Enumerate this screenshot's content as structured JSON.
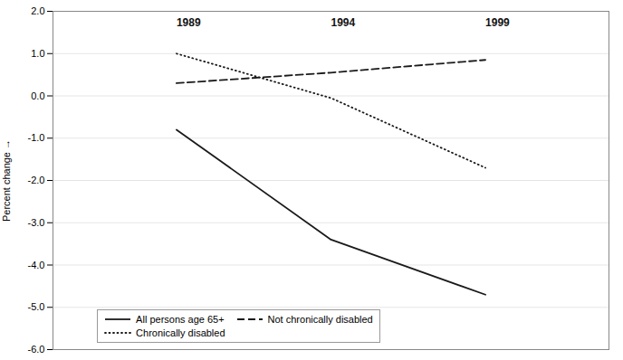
{
  "chart_data": {
    "type": "line",
    "ylabel": "Percent change",
    "x": [
      1989,
      1994,
      1999
    ],
    "series": [
      {
        "name": "All persons age 65+",
        "color": "#1a1a1a",
        "line_style": "solid",
        "values": [
          -0.8,
          -3.4,
          -4.7
        ]
      },
      {
        "name": "Not chronically disabled",
        "color": "#1a1a1a",
        "line_style": "dashed",
        "values": [
          0.3,
          0.55,
          0.85
        ]
      },
      {
        "name": "Chronically disabled",
        "color": "#1a1a1a",
        "line_style": "dotted",
        "values": [
          1.0,
          -0.05,
          -1.7
        ]
      }
    ],
    "xlim": [
      1985,
      2003
    ],
    "ylim": [
      -6,
      2
    ],
    "yticks": [
      {
        "value": -6,
        "label": "-6.0"
      },
      {
        "value": -5,
        "label": "-5.0"
      },
      {
        "value": -4,
        "label": "-4.0"
      },
      {
        "value": -3,
        "label": "-3.0"
      },
      {
        "value": -2,
        "label": "-2.0"
      },
      {
        "value": -1,
        "label": "-1.0"
      },
      {
        "value": 0,
        "label": "0.0"
      },
      {
        "value": 1,
        "label": "1.0"
      },
      {
        "value": 2,
        "label": "2.0"
      }
    ],
    "annotations": [
      {
        "text": "1989",
        "x": 1989,
        "y": 1.82
      },
      {
        "text": "1994",
        "x": 1994,
        "y": 1.82
      },
      {
        "text": "1999",
        "x": 1999,
        "y": 1.82
      }
    ],
    "grid": true,
    "legend": "lower left",
    "tick_labels": "y"
  }
}
